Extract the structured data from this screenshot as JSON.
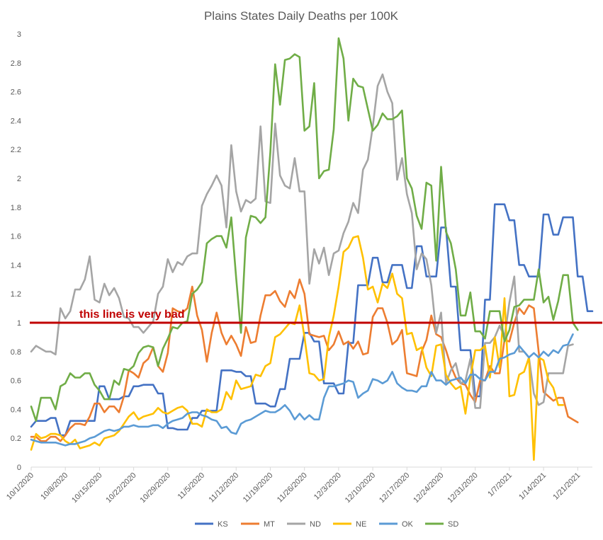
{
  "chart_data": {
    "type": "line",
    "title": "Plains States Daily Deaths per 100K",
    "xlabel": "",
    "ylabel": "",
    "ylim": [
      0,
      3
    ],
    "yticks": [
      "0",
      "0.2",
      "0.4",
      "0.6",
      "0.8",
      "1",
      "1.2",
      "1.4",
      "1.6",
      "1.8",
      "2",
      "2.2",
      "2.4",
      "2.6",
      "2.8",
      "3"
    ],
    "xticks": [
      "10/1/2020",
      "10/8/2020",
      "10/15/2020",
      "10/22/2020",
      "10/29/2020",
      "11/5/2020",
      "11/12/2020",
      "11/19/2020",
      "11/26/2020",
      "12/3/2020",
      "12/10/2020",
      "12/17/2020",
      "12/24/2020",
      "12/31/2020",
      "1/7/2021",
      "1/14/2021",
      "1/21/2021"
    ],
    "x_start": "10/1/2020",
    "grid": false,
    "legend_position": "bottom",
    "threshold": {
      "value": 1,
      "label": "this line is very bad",
      "color": "#c00000"
    },
    "series": [
      {
        "name": "KS",
        "color": "#4472c4",
        "values": [
          0.28,
          0.32,
          0.32,
          0.32,
          0.34,
          0.34,
          0.22,
          0.22,
          0.32,
          0.32,
          0.32,
          0.32,
          0.32,
          0.32,
          0.56,
          0.56,
          0.47,
          0.47,
          0.47,
          0.49,
          0.49,
          0.56,
          0.56,
          0.57,
          0.57,
          0.57,
          0.51,
          0.51,
          0.27,
          0.27,
          0.26,
          0.26,
          0.26,
          0.34,
          0.34,
          0.39,
          0.39,
          0.39,
          0.39,
          0.67,
          0.67,
          0.67,
          0.66,
          0.66,
          0.63,
          0.63,
          0.44,
          0.44,
          0.44,
          0.42,
          0.42,
          0.54,
          0.54,
          0.75,
          0.75,
          0.75,
          0.93,
          0.93,
          0.87,
          0.87,
          0.58,
          0.58,
          0.58,
          0.51,
          0.51,
          0.86,
          0.86,
          1.26,
          1.26,
          1.26,
          1.45,
          1.45,
          1.28,
          1.28,
          1.4,
          1.4,
          1.4,
          1.24,
          1.24,
          1.53,
          1.53,
          1.32,
          1.32,
          1.32,
          1.66,
          1.66,
          1.25,
          1.25,
          0.81,
          0.81,
          0.81,
          0.49,
          0.49,
          1.16,
          1.16,
          1.82,
          1.82,
          1.82,
          1.71,
          1.71,
          1.4,
          1.4,
          1.32,
          1.32,
          1.32,
          1.75,
          1.75,
          1.61,
          1.61,
          1.73,
          1.73,
          1.73,
          1.32,
          1.32,
          1.08,
          1.08
        ]
      },
      {
        "name": "MT",
        "color": "#ed7d31",
        "values": [
          0.21,
          0.21,
          0.18,
          0.18,
          0.21,
          0.21,
          0.18,
          0.22,
          0.27,
          0.3,
          0.3,
          0.29,
          0.35,
          0.44,
          0.44,
          0.38,
          0.42,
          0.42,
          0.38,
          0.49,
          0.67,
          0.65,
          0.62,
          0.72,
          0.75,
          0.83,
          0.7,
          0.66,
          0.79,
          1.1,
          1.08,
          1.07,
          1.1,
          1.25,
          1.05,
          0.95,
          0.73,
          0.93,
          1.07,
          0.93,
          0.85,
          0.91,
          0.85,
          0.77,
          0.97,
          0.86,
          0.87,
          1.05,
          1.19,
          1.19,
          1.22,
          1.15,
          1.11,
          1.22,
          1.17,
          1.3,
          1.2,
          0.92,
          0.91,
          0.9,
          0.91,
          0.81,
          0.85,
          0.94,
          0.85,
          0.87,
          0.82,
          0.87,
          0.78,
          0.79,
          1.04,
          1.1,
          1.1,
          1.0,
          0.85,
          0.88,
          0.95,
          0.65,
          0.64,
          0.63,
          0.8,
          0.88,
          1.05,
          0.92,
          0.9,
          0.81,
          0.7,
          0.62,
          0.58,
          0.57,
          0.5,
          0.45,
          0.6,
          0.6,
          0.7,
          0.65,
          0.65,
          0.88,
          0.87,
          1.0,
          1.1,
          1.06,
          1.12,
          1.1,
          0.8,
          0.52,
          0.49,
          0.46,
          0.48,
          0.48,
          0.35,
          0.33,
          0.31
        ]
      },
      {
        "name": "ND",
        "color": "#a5a5a5",
        "values": [
          0.8,
          0.84,
          0.82,
          0.8,
          0.8,
          0.78,
          1.1,
          1.03,
          1.08,
          1.23,
          1.23,
          1.3,
          1.46,
          1.16,
          1.14,
          1.27,
          1.19,
          1.24,
          1.17,
          1.04,
          1.03,
          0.97,
          0.97,
          0.93,
          0.97,
          1.01,
          1.2,
          1.25,
          1.44,
          1.35,
          1.42,
          1.4,
          1.46,
          1.48,
          1.48,
          1.81,
          1.89,
          1.95,
          2.02,
          1.95,
          1.66,
          2.23,
          1.91,
          1.77,
          1.85,
          1.83,
          1.86,
          2.36,
          1.84,
          1.83,
          2.38,
          2.02,
          1.95,
          1.93,
          2.14,
          1.91,
          1.91,
          1.27,
          1.51,
          1.41,
          1.52,
          1.33,
          1.48,
          1.5,
          1.62,
          1.7,
          1.83,
          1.76,
          2.06,
          2.13,
          2.36,
          2.64,
          2.72,
          2.6,
          2.52,
          1.99,
          2.14,
          1.89,
          1.76,
          1.37,
          1.48,
          1.44,
          1.26,
          0.93,
          1.07,
          0.58,
          0.67,
          0.72,
          0.58,
          0.6,
          0.75,
          0.41,
          0.41,
          0.86,
          0.86,
          0.9,
          0.98,
          0.9,
          1.14,
          1.32,
          0.8,
          0.8,
          0.76,
          0.51,
          0.43,
          0.45,
          0.65,
          0.65,
          0.65,
          0.65,
          0.84,
          0.85
        ]
      },
      {
        "name": "NE",
        "color": "#ffc000",
        "values": [
          0.12,
          0.23,
          0.2,
          0.21,
          0.23,
          0.23,
          0.22,
          0.18,
          0.16,
          0.19,
          0.13,
          0.14,
          0.15,
          0.17,
          0.15,
          0.2,
          0.21,
          0.22,
          0.25,
          0.3,
          0.35,
          0.38,
          0.33,
          0.35,
          0.36,
          0.37,
          0.41,
          0.38,
          0.37,
          0.39,
          0.41,
          0.42,
          0.39,
          0.3,
          0.3,
          0.28,
          0.4,
          0.38,
          0.38,
          0.4,
          0.52,
          0.47,
          0.6,
          0.54,
          0.55,
          0.56,
          0.64,
          0.63,
          0.7,
          0.72,
          0.9,
          0.92,
          0.96,
          1.0,
          0.99,
          1.12,
          0.9,
          0.65,
          0.64,
          0.6,
          0.61,
          0.9,
          1.05,
          1.25,
          1.49,
          1.52,
          1.59,
          1.6,
          1.45,
          1.23,
          1.25,
          1.14,
          1.27,
          1.24,
          1.34,
          1.2,
          1.17,
          0.92,
          0.93,
          0.81,
          0.83,
          0.69,
          0.63,
          0.84,
          0.85,
          0.64,
          0.58,
          0.54,
          0.56,
          0.37,
          0.62,
          0.81,
          0.81,
          0.84,
          0.62,
          0.9,
          0.69,
          1.17,
          0.49,
          0.5,
          0.64,
          0.66,
          0.76,
          0.05,
          0.76,
          0.74,
          0.6,
          0.55,
          0.43,
          0.43
        ]
      },
      {
        "name": "OK",
        "color": "#5b9bd5",
        "values": [
          0.19,
          0.18,
          0.17,
          0.17,
          0.17,
          0.17,
          0.16,
          0.15,
          0.16,
          0.16,
          0.17,
          0.18,
          0.2,
          0.21,
          0.23,
          0.25,
          0.26,
          0.25,
          0.26,
          0.28,
          0.28,
          0.29,
          0.28,
          0.28,
          0.28,
          0.29,
          0.29,
          0.27,
          0.3,
          0.32,
          0.33,
          0.34,
          0.37,
          0.38,
          0.38,
          0.36,
          0.35,
          0.33,
          0.32,
          0.27,
          0.28,
          0.24,
          0.23,
          0.3,
          0.32,
          0.33,
          0.35,
          0.37,
          0.39,
          0.38,
          0.38,
          0.4,
          0.43,
          0.39,
          0.33,
          0.37,
          0.33,
          0.36,
          0.33,
          0.33,
          0.48,
          0.56,
          0.56,
          0.57,
          0.58,
          0.6,
          0.59,
          0.48,
          0.51,
          0.53,
          0.61,
          0.6,
          0.58,
          0.6,
          0.66,
          0.58,
          0.55,
          0.53,
          0.53,
          0.52,
          0.56,
          0.56,
          0.66,
          0.6,
          0.6,
          0.57,
          0.6,
          0.61,
          0.62,
          0.58,
          0.64,
          0.64,
          0.61,
          0.6,
          0.66,
          0.66,
          0.75,
          0.76,
          0.78,
          0.79,
          0.84,
          0.8,
          0.76,
          0.79,
          0.76,
          0.8,
          0.77,
          0.81,
          0.79,
          0.84,
          0.85,
          0.92
        ]
      },
      {
        "name": "SD",
        "color": "#70ad47",
        "values": [
          0.42,
          0.32,
          0.48,
          0.48,
          0.48,
          0.4,
          0.56,
          0.58,
          0.65,
          0.62,
          0.62,
          0.65,
          0.65,
          0.57,
          0.53,
          0.47,
          0.47,
          0.6,
          0.57,
          0.68,
          0.67,
          0.7,
          0.79,
          0.83,
          0.84,
          0.83,
          0.7,
          0.82,
          0.89,
          0.97,
          0.96,
          1.0,
          1.01,
          1.2,
          1.23,
          1.28,
          1.55,
          1.58,
          1.6,
          1.6,
          1.52,
          1.73,
          1.31,
          0.93,
          1.59,
          1.74,
          1.73,
          1.69,
          1.73,
          2.18,
          2.79,
          2.51,
          2.82,
          2.83,
          2.86,
          2.84,
          2.33,
          2.36,
          2.66,
          2.0,
          2.05,
          2.06,
          2.34,
          2.97,
          2.83,
          2.4,
          2.69,
          2.64,
          2.63,
          2.48,
          2.33,
          2.37,
          2.45,
          2.41,
          2.41,
          2.43,
          2.47,
          2.0,
          1.93,
          1.74,
          1.65,
          1.97,
          1.95,
          1.43,
          2.08,
          1.63,
          1.55,
          1.37,
          1.05,
          1.05,
          1.21,
          0.94,
          0.94,
          0.89,
          1.08,
          1.08,
          1.08,
          0.87,
          0.95,
          1.11,
          1.12,
          1.16,
          1.16,
          1.16,
          1.37,
          1.14,
          1.18,
          1.02,
          1.15,
          1.33,
          1.33,
          1.0,
          0.95
        ]
      }
    ]
  }
}
